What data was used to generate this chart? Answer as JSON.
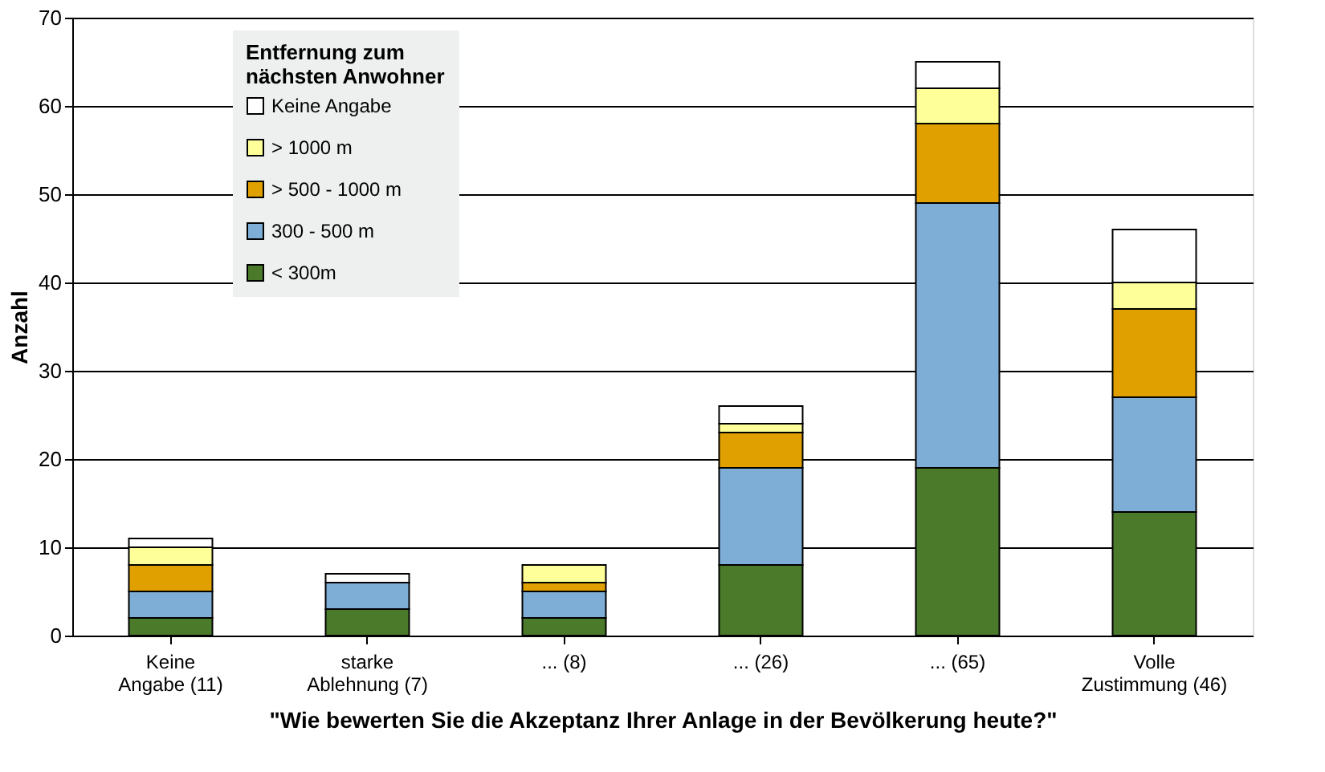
{
  "chart_data": {
    "type": "bar",
    "stacked": true,
    "categories": [
      "Keine\nAngabe (11)",
      "starke\nAblehnung (7)",
      "... (8)",
      "... (26)",
      "... (65)",
      "Volle\nZustimmung (46)"
    ],
    "xlabel": "\"Wie bewerten Sie die Akzeptanz Ihrer Anlage in der Bevölkerung heute?\"",
    "ylabel": "Anzahl",
    "legend_title": "Entfernung zum\nnächsten Anwohner",
    "series": [
      {
        "name": "< 300m",
        "color": "#4a7a2a",
        "values": [
          2,
          3,
          2,
          8,
          19,
          14
        ]
      },
      {
        "name": "300 - 500 m",
        "color": "#7eadd6",
        "values": [
          3,
          3,
          3,
          11,
          30,
          13
        ]
      },
      {
        "name": "> 500 - 1000 m",
        "color": "#e0a000",
        "values": [
          3,
          0,
          1,
          4,
          9,
          10
        ]
      },
      {
        "name": "> 1000 m",
        "color": "#ffff99",
        "values": [
          2,
          0,
          2,
          1,
          4,
          3
        ]
      },
      {
        "name": "Keine Angabe",
        "color": "#ffffff",
        "values": [
          1,
          1,
          0,
          2,
          3,
          6
        ]
      }
    ],
    "ylim": [
      0,
      70
    ],
    "yticks": [
      0,
      10,
      20,
      30,
      40,
      50,
      60,
      70
    ],
    "grid": "y",
    "legend": "top left"
  }
}
